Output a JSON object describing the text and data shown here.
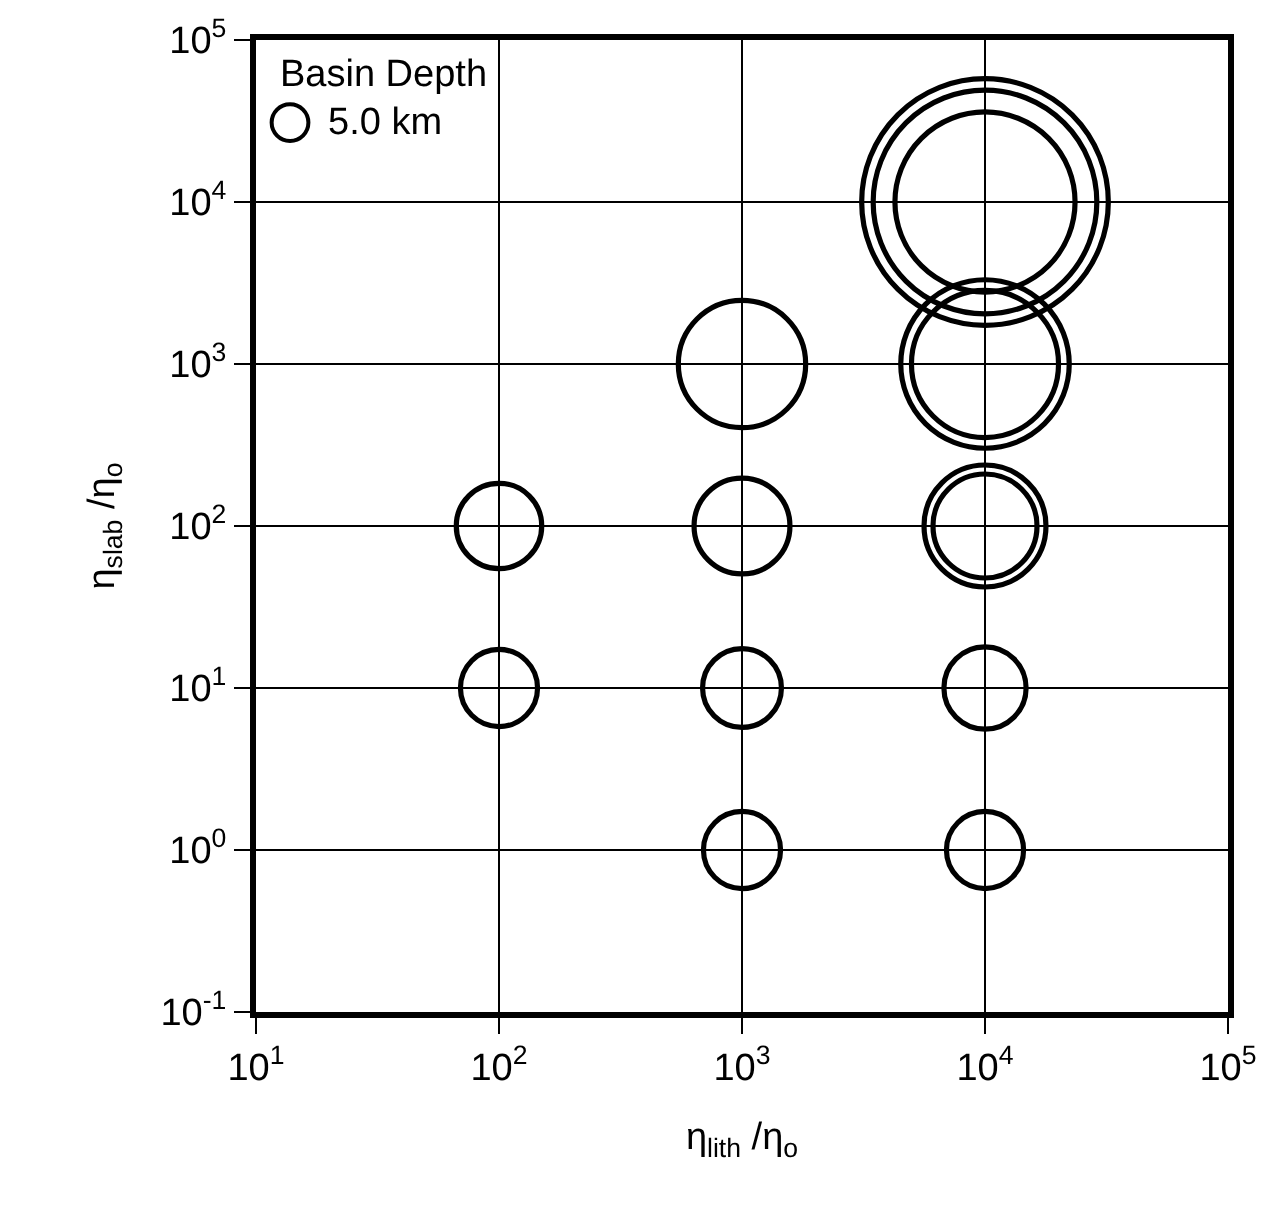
{
  "chart_data": {
    "type": "bubble",
    "xlabel": "η$_{lith}$ /η$_{o}$",
    "ylabel": "η$_{slab}$ /η$_{o}$",
    "legend_title": "Basin Depth",
    "log": "xy",
    "grid": true,
    "xlim": [
      10,
      100000
    ],
    "ylim": [
      0.1,
      100000
    ],
    "xticks": [
      {
        "value": 10,
        "label": "10$^{1}$"
      },
      {
        "value": 100,
        "label": "10$^{2}$"
      },
      {
        "value": 1000,
        "label": "10$^{3}$"
      },
      {
        "value": 10000,
        "label": "10$^{4}$"
      },
      {
        "value": 100000,
        "label": "10$^{5}$"
      }
    ],
    "yticks": [
      {
        "value": 0.1,
        "label": "10$^{-1}$"
      },
      {
        "value": 1,
        "label": "10$^{0}$"
      },
      {
        "value": 10,
        "label": "10$^{1}$"
      },
      {
        "value": 100,
        "label": "10$^{2}$"
      },
      {
        "value": 1000,
        "label": "10$^{3}$"
      },
      {
        "value": 10000,
        "label": "10$^{4}$"
      },
      {
        "value": 100000,
        "label": "10$^{5}$"
      }
    ],
    "size_legend": [
      {
        "value": 5.0,
        "label": "5.0 km"
      }
    ],
    "series": [
      {
        "color": "#000000",
        "x": [
          100,
          100,
          1000,
          1000,
          1000,
          1000,
          10000,
          10000,
          10000,
          10000,
          10000
        ],
        "values": [
          10,
          100,
          1,
          10,
          100,
          1000,
          1,
          10,
          100,
          1000,
          10000
        ],
        "sizes": [
          22,
          27,
          22,
          23,
          34,
          60,
          22,
          25,
          40,
          80,
          120
        ]
      },
      {
        "color": "#000000",
        "x": [
          10000,
          10000,
          10000
        ],
        "values": [
          100,
          1000,
          10000
        ],
        "sizes": [
          55,
          105,
          185
        ]
      },
      {
        "color": "#000000",
        "x": [
          10000
        ],
        "values": [
          10000
        ],
        "sizes": [
          225
        ]
      }
    ]
  }
}
